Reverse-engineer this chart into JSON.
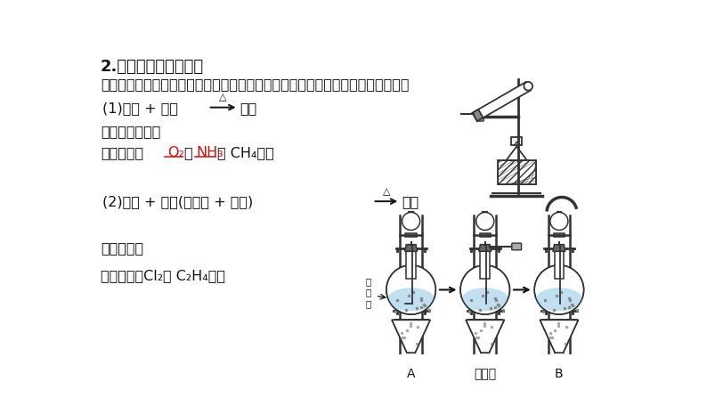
{
  "title": "2.重要气体的发生装置",
  "intro": "依据制备气体所需的反应物状态和反应条件，可将制备气体的发生装置分为三类：",
  "p1_pre": "(1)固体 + 固体",
  "p1_post": "气体",
  "p2": "发生装置如图：",
  "p3_pre": "制备气体：",
  "p3_O2": "O₂",
  "p3_NH3": "NH₃",
  "p3_ch4": "、 CH₄等。",
  "p4_pre": "(2)固体 + 液体(或液体 + 液体)",
  "p4_post": "气体",
  "p5": "发生装置：",
  "p6": "制备气体：Cl₂、 C₂H₄等。",
  "lbl_A": "A",
  "lbl_mid": "发散源",
  "lbl_B": "B",
  "lbl_chip": "碎\n瓷\n片",
  "bg": "#ffffff",
  "black": "#111111",
  "red": "#cc1111",
  "gray": "#888888",
  "lgray": "#cccccc",
  "blue_tint": "#ddeeff"
}
